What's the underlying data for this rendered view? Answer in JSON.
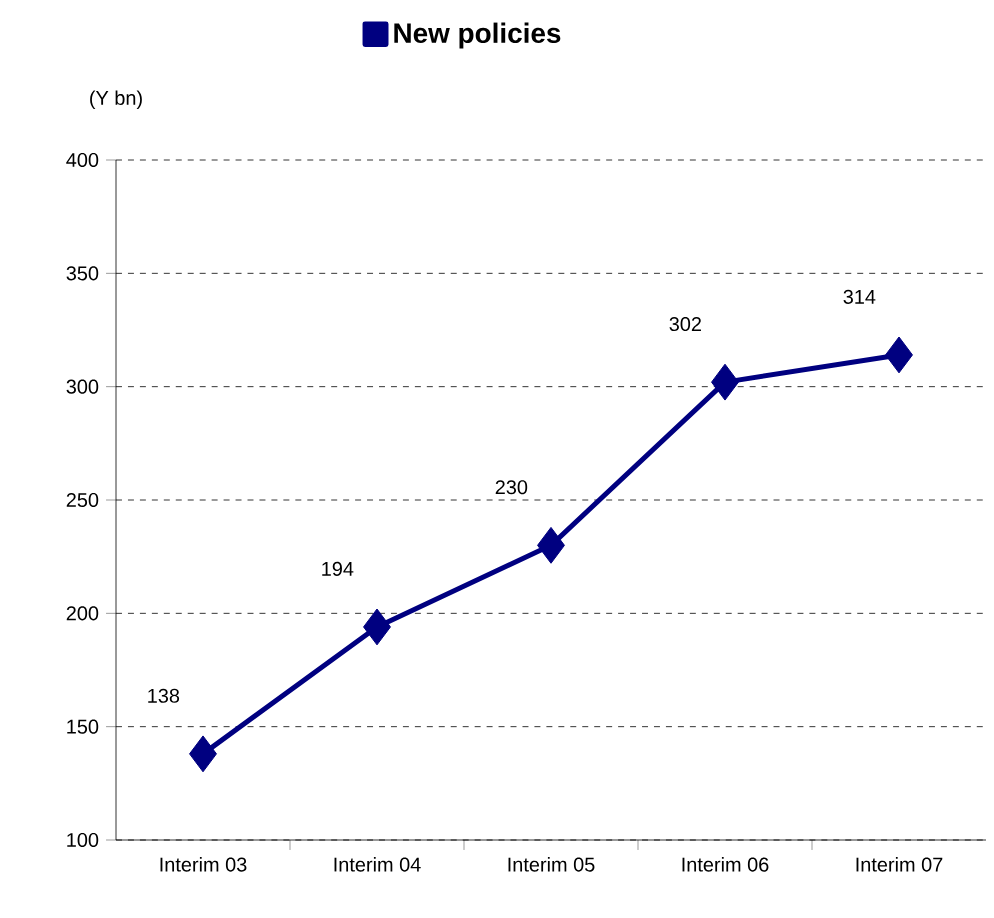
{
  "chart_data": {
    "type": "line",
    "ylabel": "(Y bn)",
    "categories": [
      "Interim 03",
      "Interim 04",
      "Interim 05",
      "Interim 06",
      "Interim 07"
    ],
    "series": [
      {
        "name": "New policies",
        "color": "#000080",
        "values": [
          138,
          194,
          230,
          302,
          314
        ]
      }
    ],
    "ylim": [
      100,
      400
    ],
    "yticks": [
      100,
      150,
      200,
      250,
      300,
      350,
      400
    ],
    "grid": "y",
    "legend": "top",
    "marker": "diamond",
    "line_style": "solid",
    "data_labels": true
  }
}
